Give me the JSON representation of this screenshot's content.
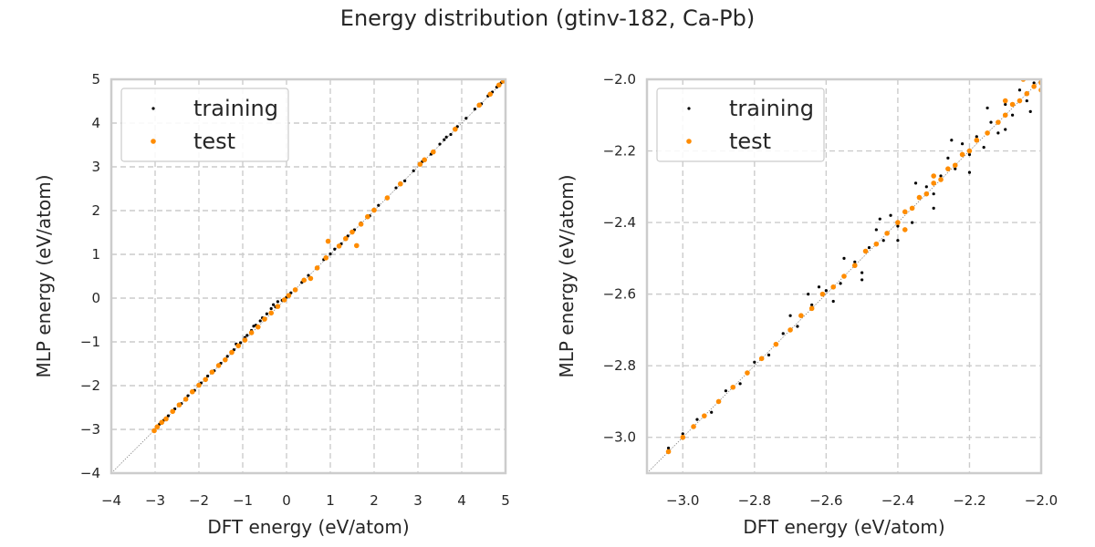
{
  "figure": {
    "title": "Energy distribution (gtinv-182, Ca-Pb)"
  },
  "colors": {
    "training": "#000000",
    "test": "#ff8c00",
    "grid": "#cccccc",
    "spine": "#cccccc",
    "diagonal": "#888888"
  },
  "chart_data": [
    {
      "type": "scatter",
      "xlabel": "DFT energy (eV/atom)",
      "ylabel": "MLP energy (eV/atom)",
      "xlim": [
        -4,
        5
      ],
      "ylim": [
        -4,
        5
      ],
      "xticks": [
        -4,
        -3,
        -2,
        -1,
        0,
        1,
        2,
        3,
        4,
        5
      ],
      "yticks": [
        -4,
        -3,
        -2,
        -1,
        0,
        1,
        2,
        3,
        4,
        5
      ],
      "xtick_labels": [
        "−4",
        "−3",
        "−2",
        "−1",
        "0",
        "1",
        "2",
        "3",
        "4",
        "5"
      ],
      "ytick_labels": [
        "−4",
        "−3",
        "−2",
        "−1",
        "0",
        "1",
        "2",
        "3",
        "4",
        "5"
      ],
      "grid": true,
      "legend_position": "top-left",
      "diagonal": "y = x",
      "series": [
        {
          "name": "training",
          "color": "#000000",
          "marker_size": 1.6,
          "points": [
            [
              -3.02,
              -3.01
            ],
            [
              -2.9,
              -2.88
            ],
            [
              -2.8,
              -2.79
            ],
            [
              -2.7,
              -2.69
            ],
            [
              -2.55,
              -2.53
            ],
            [
              -2.4,
              -2.41
            ],
            [
              -2.25,
              -2.23
            ],
            [
              -2.1,
              -2.11
            ],
            [
              -1.95,
              -1.94
            ],
            [
              -1.8,
              -1.78
            ],
            [
              -1.65,
              -1.66
            ],
            [
              -1.5,
              -1.49
            ],
            [
              -1.35,
              -1.33
            ],
            [
              -1.2,
              -1.18
            ],
            [
              -1.05,
              -1.02
            ],
            [
              -0.95,
              -0.9
            ],
            [
              -0.9,
              -0.85
            ],
            [
              -0.8,
              -0.74
            ],
            [
              -0.7,
              -0.62
            ],
            [
              -0.6,
              -0.52
            ],
            [
              -0.55,
              -0.45
            ],
            [
              -0.45,
              -0.36
            ],
            [
              -0.35,
              -0.24
            ],
            [
              -0.3,
              -0.15
            ],
            [
              -0.25,
              -0.2
            ],
            [
              -0.2,
              -0.08
            ],
            [
              -0.1,
              -0.05
            ],
            [
              0.0,
              0.02
            ],
            [
              0.1,
              0.12
            ],
            [
              0.2,
              0.21
            ],
            [
              0.35,
              0.36
            ],
            [
              0.5,
              0.52
            ],
            [
              0.7,
              0.71
            ],
            [
              0.85,
              0.88
            ],
            [
              1.0,
              1.01
            ],
            [
              1.1,
              1.12
            ],
            [
              1.25,
              1.24
            ],
            [
              1.4,
              1.42
            ],
            [
              1.55,
              1.56
            ],
            [
              1.7,
              1.72
            ],
            [
              1.9,
              1.88
            ],
            [
              2.1,
              2.12
            ],
            [
              2.3,
              2.31
            ],
            [
              2.5,
              2.52
            ],
            [
              2.7,
              2.68
            ],
            [
              2.9,
              2.91
            ],
            [
              3.1,
              3.12
            ],
            [
              3.3,
              3.29
            ],
            [
              3.5,
              3.52
            ],
            [
              3.6,
              3.62
            ],
            [
              3.75,
              3.74
            ],
            [
              3.9,
              3.92
            ],
            [
              4.1,
              4.11
            ],
            [
              4.3,
              4.32
            ],
            [
              4.45,
              4.44
            ],
            [
              4.6,
              4.62
            ],
            [
              4.7,
              4.71
            ],
            [
              4.8,
              4.82
            ],
            [
              4.9,
              4.92
            ],
            [
              -1.15,
              -1.05
            ],
            [
              -0.75,
              -0.64
            ],
            [
              3.65,
              3.68
            ]
          ]
        },
        {
          "name": "test",
          "color": "#ff8c00",
          "marker_size": 2.8,
          "points": [
            [
              -3.02,
              -3.03
            ],
            [
              -2.95,
              -2.94
            ],
            [
              -2.85,
              -2.84
            ],
            [
              -2.75,
              -2.76
            ],
            [
              -2.6,
              -2.59
            ],
            [
              -2.45,
              -2.44
            ],
            [
              -2.3,
              -2.31
            ],
            [
              -2.15,
              -2.14
            ],
            [
              -2.0,
              -1.99
            ],
            [
              -1.85,
              -1.86
            ],
            [
              -1.7,
              -1.69
            ],
            [
              -1.55,
              -1.54
            ],
            [
              -1.4,
              -1.41
            ],
            [
              -1.25,
              -1.24
            ],
            [
              -1.1,
              -1.09
            ],
            [
              -0.95,
              -0.96
            ],
            [
              -0.8,
              -0.79
            ],
            [
              -0.65,
              -0.66
            ],
            [
              -0.5,
              -0.48
            ],
            [
              -0.35,
              -0.34
            ],
            [
              -0.2,
              -0.19
            ],
            [
              -0.05,
              -0.04
            ],
            [
              0.05,
              0.06
            ],
            [
              0.2,
              0.19
            ],
            [
              0.4,
              0.41
            ],
            [
              0.55,
              0.45
            ],
            [
              0.7,
              0.69
            ],
            [
              0.9,
              0.92
            ],
            [
              0.95,
              1.3
            ],
            [
              1.2,
              1.19
            ],
            [
              1.35,
              1.36
            ],
            [
              1.5,
              1.51
            ],
            [
              1.6,
              1.2
            ],
            [
              1.7,
              1.69
            ],
            [
              1.85,
              1.86
            ],
            [
              2.0,
              2.01
            ],
            [
              2.3,
              2.29
            ],
            [
              2.6,
              2.61
            ],
            [
              3.05,
              3.06
            ],
            [
              3.15,
              3.16
            ],
            [
              3.35,
              3.34
            ],
            [
              3.85,
              3.86
            ],
            [
              4.4,
              4.41
            ],
            [
              4.65,
              4.66
            ],
            [
              4.85,
              4.87
            ],
            [
              4.95,
              4.96
            ]
          ]
        }
      ]
    },
    {
      "type": "scatter",
      "xlabel": "DFT energy (eV/atom)",
      "ylabel": "MLP energy (eV/atom)",
      "xlim": [
        -3.1,
        -2.0
      ],
      "ylim": [
        -3.1,
        -2.0
      ],
      "xticks": [
        -3.0,
        -2.8,
        -2.6,
        -2.4,
        -2.2,
        -2.0
      ],
      "yticks": [
        -3.0,
        -2.8,
        -2.6,
        -2.4,
        -2.2,
        -2.0
      ],
      "xtick_labels": [
        "−3.0",
        "−2.8",
        "−2.6",
        "−2.4",
        "−2.2",
        "−2.0"
      ],
      "ytick_labels": [
        "−3.0",
        "−2.8",
        "−2.6",
        "−2.4",
        "−2.2",
        "−2.0"
      ],
      "grid": true,
      "legend_position": "top-left",
      "diagonal": "y = x",
      "series": [
        {
          "name": "training",
          "color": "#000000",
          "marker_size": 1.6,
          "points": [
            [
              -3.04,
              -3.03
            ],
            [
              -3.0,
              -2.99
            ],
            [
              -2.96,
              -2.95
            ],
            [
              -2.92,
              -2.93
            ],
            [
              -2.88,
              -2.87
            ],
            [
              -2.84,
              -2.85
            ],
            [
              -2.8,
              -2.79
            ],
            [
              -2.76,
              -2.77
            ],
            [
              -2.72,
              -2.71
            ],
            [
              -2.68,
              -2.69
            ],
            [
              -2.64,
              -2.63
            ],
            [
              -2.6,
              -2.59
            ],
            [
              -2.58,
              -2.62
            ],
            [
              -2.56,
              -2.57
            ],
            [
              -2.52,
              -2.51
            ],
            [
              -2.5,
              -2.54
            ],
            [
              -2.48,
              -2.47
            ],
            [
              -2.46,
              -2.42
            ],
            [
              -2.44,
              -2.45
            ],
            [
              -2.42,
              -2.38
            ],
            [
              -2.4,
              -2.41
            ],
            [
              -2.38,
              -2.37
            ],
            [
              -2.36,
              -2.4
            ],
            [
              -2.34,
              -2.33
            ],
            [
              -2.32,
              -2.3
            ],
            [
              -2.3,
              -2.32
            ],
            [
              -2.28,
              -2.27
            ],
            [
              -2.26,
              -2.22
            ],
            [
              -2.24,
              -2.25
            ],
            [
              -2.22,
              -2.18
            ],
            [
              -2.2,
              -2.21
            ],
            [
              -2.18,
              -2.16
            ],
            [
              -2.16,
              -2.19
            ],
            [
              -2.14,
              -2.12
            ],
            [
              -2.12,
              -2.15
            ],
            [
              -2.1,
              -2.07
            ],
            [
              -2.08,
              -2.1
            ],
            [
              -2.06,
              -2.03
            ],
            [
              -2.04,
              -2.06
            ],
            [
              -2.02,
              -2.01
            ],
            [
              -2.05,
              -2.0
            ],
            [
              -2.15,
              -2.08
            ],
            [
              -2.25,
              -2.17
            ],
            [
              -2.35,
              -2.29
            ],
            [
              -2.45,
              -2.39
            ],
            [
              -2.55,
              -2.5
            ],
            [
              -2.65,
              -2.6
            ],
            [
              -2.2,
              -2.26
            ],
            [
              -2.3,
              -2.36
            ],
            [
              -2.4,
              -2.45
            ],
            [
              -2.5,
              -2.56
            ],
            [
              -2.1,
              -2.14
            ],
            [
              -2.03,
              -2.09
            ],
            [
              -2.62,
              -2.58
            ],
            [
              -2.7,
              -2.66
            ]
          ]
        },
        {
          "name": "test",
          "color": "#ff8c00",
          "marker_size": 2.8,
          "points": [
            [
              -3.04,
              -3.04
            ],
            [
              -3.0,
              -3.0
            ],
            [
              -2.97,
              -2.97
            ],
            [
              -2.94,
              -2.94
            ],
            [
              -2.9,
              -2.9
            ],
            [
              -2.86,
              -2.86
            ],
            [
              -2.82,
              -2.82
            ],
            [
              -2.78,
              -2.78
            ],
            [
              -2.74,
              -2.74
            ],
            [
              -2.7,
              -2.7
            ],
            [
              -2.67,
              -2.66
            ],
            [
              -2.64,
              -2.64
            ],
            [
              -2.61,
              -2.6
            ],
            [
              -2.58,
              -2.58
            ],
            [
              -2.55,
              -2.55
            ],
            [
              -2.52,
              -2.52
            ],
            [
              -2.49,
              -2.48
            ],
            [
              -2.46,
              -2.46
            ],
            [
              -2.43,
              -2.43
            ],
            [
              -2.4,
              -2.4
            ],
            [
              -2.38,
              -2.37
            ],
            [
              -2.36,
              -2.36
            ],
            [
              -2.34,
              -2.33
            ],
            [
              -2.32,
              -2.32
            ],
            [
              -2.3,
              -2.29
            ],
            [
              -2.28,
              -2.28
            ],
            [
              -2.26,
              -2.25
            ],
            [
              -2.24,
              -2.24
            ],
            [
              -2.22,
              -2.21
            ],
            [
              -2.2,
              -2.2
            ],
            [
              -2.18,
              -2.17
            ],
            [
              -2.15,
              -2.15
            ],
            [
              -2.12,
              -2.12
            ],
            [
              -2.1,
              -2.1
            ],
            [
              -2.08,
              -2.07
            ],
            [
              -2.06,
              -2.06
            ],
            [
              -2.04,
              -2.04
            ],
            [
              -2.02,
              -2.02
            ],
            [
              -2.0,
              -2.01
            ],
            [
              -2.0,
              -2.03
            ],
            [
              -2.05,
              -2.0
            ],
            [
              -2.1,
              -2.06
            ],
            [
              -2.38,
              -2.42
            ],
            [
              -2.3,
              -2.27
            ],
            [
              -2.0,
              -2.0
            ]
          ]
        }
      ]
    }
  ]
}
